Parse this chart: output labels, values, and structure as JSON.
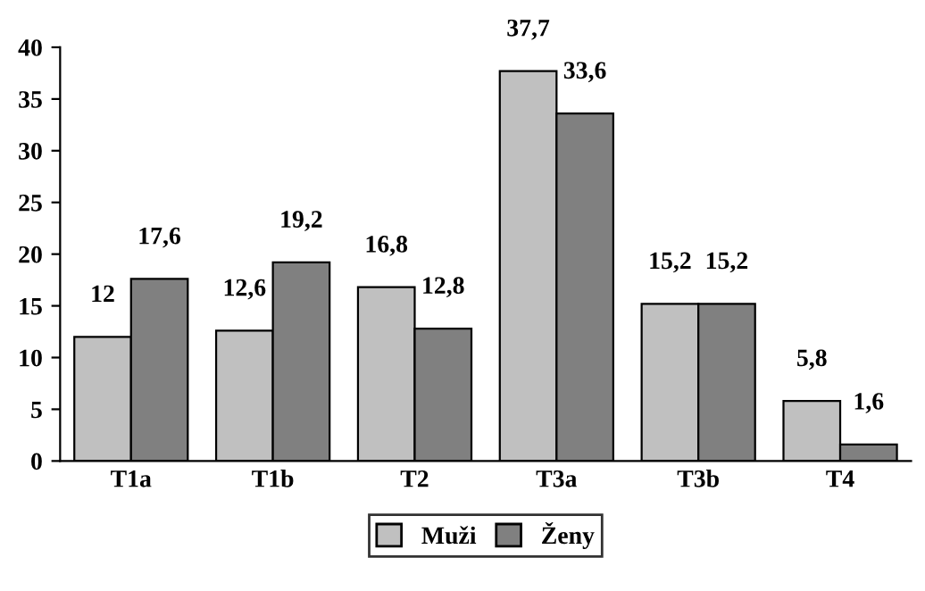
{
  "chart_data": {
    "type": "bar",
    "categories": [
      "T1a",
      "T1b",
      "T2",
      "T3a",
      "T3b",
      "T4"
    ],
    "series": [
      {
        "name": "Muži",
        "color": "#c0c0c0",
        "values": [
          12,
          12.6,
          16.8,
          37.7,
          15.2,
          5.8
        ],
        "value_labels": [
          "12",
          "12,6",
          "16,8",
          "37,7",
          "15,2",
          "5,8"
        ]
      },
      {
        "name": "Ženy",
        "color": "#808080",
        "values": [
          17.6,
          19.2,
          12.8,
          33.6,
          15.2,
          1.6
        ],
        "value_labels": [
          "17,6",
          "19,2",
          "12,8",
          "33,6",
          "15,2",
          "1,6"
        ]
      }
    ],
    "ylim": [
      0,
      40
    ],
    "yticks": [
      0,
      5,
      10,
      15,
      20,
      25,
      30,
      35,
      40
    ],
    "grid": false,
    "legend": "bottom"
  }
}
